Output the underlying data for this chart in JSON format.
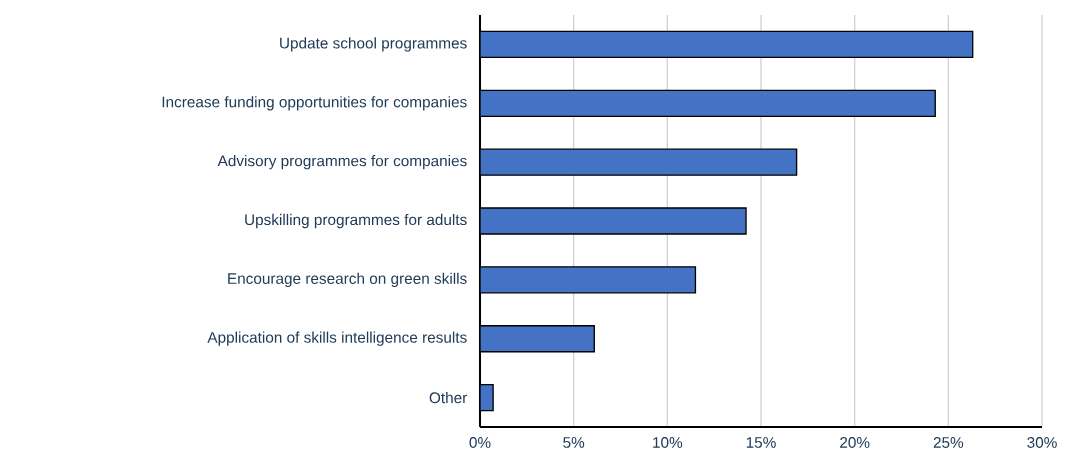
{
  "chart_data": {
    "type": "bar",
    "orientation": "horizontal",
    "categories": [
      "Update school programmes",
      "Increase funding opportunities for companies",
      "Advisory programmes for companies",
      "Upskilling programmes for adults",
      "Encourage research on green skills",
      "Application of skills intelligence results",
      "Other"
    ],
    "values": [
      26.3,
      24.3,
      16.9,
      14.2,
      11.5,
      6.1,
      0.7
    ],
    "color": "#4472c4",
    "xlim": [
      0,
      30
    ],
    "xticks": [
      {
        "value": 0,
        "label": "0%"
      },
      {
        "value": 5,
        "label": "5%"
      },
      {
        "value": 10,
        "label": "10%"
      },
      {
        "value": 15,
        "label": "15%"
      },
      {
        "value": 20,
        "label": "20%"
      },
      {
        "value": 25,
        "label": "25%"
      },
      {
        "value": 30,
        "label": "30%"
      }
    ],
    "grid": "x"
  }
}
